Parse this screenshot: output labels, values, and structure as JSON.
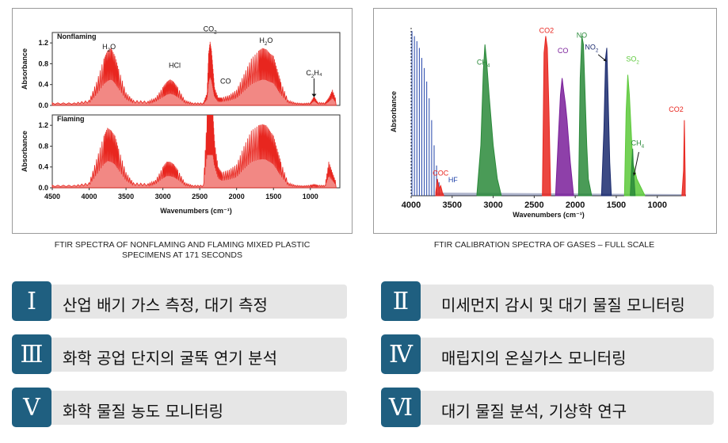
{
  "colors": {
    "badge": "#1f5f80",
    "bar_bg": "#e6e6e6",
    "red": "#e8261f",
    "green": "#2a8a3a",
    "purple": "#7a1f9a",
    "navy": "#1a2a6e",
    "lightgreen": "#5cc93a",
    "blue": "#2244aa"
  },
  "chart_data": [
    {
      "type": "line",
      "panels": [
        "Nonflaming",
        "Flaming"
      ],
      "ylabel": "Absorbance",
      "xlabel": "Wavenumbers (cm⁻¹)",
      "x_ticks": [
        "4500",
        "4000",
        "3500",
        "3000",
        "2500",
        "2000",
        "1500",
        "1000"
      ],
      "y_ticks": [
        "0.0",
        "0.4",
        "0.8",
        "1.2"
      ],
      "xlim": [
        4500,
        600
      ],
      "ylim": [
        0,
        1.4
      ],
      "annotations": [
        {
          "x": 3730,
          "y": 1.08,
          "base": "H",
          "sub": "2",
          "tail": "O"
        },
        {
          "x": 2840,
          "y": 0.72,
          "base": "HCl",
          "sub": "",
          "tail": ""
        },
        {
          "x": 2360,
          "y": 1.42,
          "base": "CO",
          "sub": "2",
          "tail": ""
        },
        {
          "x": 2150,
          "y": 0.42,
          "base": "CO",
          "sub": "",
          "tail": ""
        },
        {
          "x": 1600,
          "y": 1.2,
          "base": "H",
          "sub": "2",
          "tail": "O"
        },
        {
          "x": 950,
          "y": 0.58,
          "base": "C",
          "sub": "2",
          "tail": "H₄"
        }
      ],
      "series": [
        {
          "name": "Nonflaming",
          "x": [
            4500,
            4200,
            4000,
            3900,
            3800,
            3750,
            3700,
            3650,
            3600,
            3500,
            3400,
            3200,
            3100,
            3000,
            2950,
            2900,
            2850,
            2800,
            2700,
            2600,
            2450,
            2400,
            2380,
            2360,
            2340,
            2320,
            2300,
            2250,
            2200,
            2100,
            2000,
            1900,
            1800,
            1700,
            1650,
            1600,
            1550,
            1500,
            1450,
            1400,
            1300,
            1200,
            1100,
            1000,
            950,
            900,
            800,
            750,
            700,
            650
          ],
          "y": [
            0.05,
            0.05,
            0.1,
            0.45,
            0.9,
            1.05,
            1.1,
            0.95,
            0.7,
            0.25,
            0.1,
            0.08,
            0.15,
            0.35,
            0.45,
            0.5,
            0.45,
            0.35,
            0.1,
            0.05,
            0.05,
            0.25,
            1.0,
            1.22,
            1.05,
            0.7,
            0.35,
            0.15,
            0.15,
            0.2,
            0.3,
            0.6,
            0.9,
            1.05,
            1.1,
            1.08,
            1.0,
            0.95,
            0.7,
            0.45,
            0.1,
            0.05,
            0.04,
            0.05,
            0.18,
            0.06,
            0.05,
            0.15,
            0.3,
            0.1
          ]
        },
        {
          "name": "Flaming",
          "x": [
            4500,
            4200,
            4000,
            3900,
            3800,
            3750,
            3700,
            3650,
            3600,
            3500,
            3400,
            3200,
            3100,
            3000,
            2950,
            2900,
            2850,
            2800,
            2700,
            2600,
            2450,
            2400,
            2380,
            2360,
            2340,
            2320,
            2300,
            2250,
            2200,
            2100,
            2000,
            1900,
            1800,
            1700,
            1650,
            1600,
            1550,
            1500,
            1450,
            1400,
            1300,
            1200,
            1100,
            1000,
            950,
            900,
            800,
            750,
            700,
            650
          ],
          "y": [
            0.05,
            0.05,
            0.1,
            0.55,
            1.0,
            1.15,
            1.1,
            1.0,
            0.75,
            0.3,
            0.1,
            0.08,
            0.15,
            0.4,
            0.5,
            0.5,
            0.45,
            0.35,
            0.1,
            0.05,
            0.05,
            1.4,
            1.4,
            1.4,
            1.4,
            1.4,
            0.9,
            0.4,
            0.3,
            0.35,
            0.45,
            0.8,
            1.1,
            1.2,
            1.22,
            1.2,
            1.1,
            1.0,
            0.75,
            0.5,
            0.1,
            0.05,
            0.04,
            0.05,
            0.06,
            0.05,
            0.05,
            0.5,
            0.3,
            0.1
          ]
        }
      ]
    },
    {
      "type": "area",
      "ylabel": "Absorbance",
      "xlabel": "Wavenumbers (cm⁻¹)",
      "x_ticks": [
        "4000",
        "3500",
        "3000",
        "2500",
        "2000",
        "1500",
        "1000"
      ],
      "xlim": [
        4000,
        650
      ],
      "ylim": [
        0,
        1
      ],
      "labels": [
        {
          "x": 3640,
          "y": 0.12,
          "base": "COC",
          "sub": "",
          "tail": "",
          "color": "#e8261f"
        },
        {
          "x": 3490,
          "y": 0.08,
          "base": "HF",
          "sub": "",
          "tail": "",
          "color": "#2244aa"
        },
        {
          "x": 3120,
          "y": 0.78,
          "base": "CH",
          "sub": "4",
          "tail": "",
          "color": "#2a8a3a"
        },
        {
          "x": 2350,
          "y": 0.97,
          "base": "CO2",
          "sub": "",
          "tail": "",
          "color": "#e8261f"
        },
        {
          "x": 2150,
          "y": 0.85,
          "base": "CO",
          "sub": "",
          "tail": "",
          "color": "#7a1f9a"
        },
        {
          "x": 1920,
          "y": 0.94,
          "base": "NO",
          "sub": "",
          "tail": "",
          "color": "#2a8a3a"
        },
        {
          "x": 1800,
          "y": 0.87,
          "base": "NO",
          "sub": "2",
          "tail": "",
          "color": "#1a2a6e"
        },
        {
          "x": 1300,
          "y": 0.8,
          "base": "SO",
          "sub": "2",
          "tail": "",
          "color": "#5cc93a"
        },
        {
          "x": 1240,
          "y": 0.3,
          "base": "CH",
          "sub": "4",
          "tail": "",
          "color": "#2a8a3a"
        },
        {
          "x": 770,
          "y": 0.5,
          "base": "CO2",
          "sub": "",
          "tail": "",
          "color": "#e8261f"
        }
      ],
      "series": [
        {
          "name": "HF",
          "color": "#2244aa",
          "x": [
            3990,
            3960,
            3930,
            3900,
            3870,
            3840,
            3810,
            3780,
            3750,
            3720,
            3690,
            3660
          ],
          "y": [
            0.98,
            0.95,
            0.92,
            0.88,
            0.82,
            0.76,
            0.68,
            0.58,
            0.45,
            0.3,
            0.18,
            0.08
          ]
        },
        {
          "name": "COC",
          "color": "#e8261f",
          "x": [
            3700,
            3680,
            3660,
            3640,
            3620,
            3600
          ],
          "y": [
            0.02,
            0.1,
            0.04,
            0.06,
            0.02,
            0.0
          ]
        },
        {
          "name": "CH4",
          "color": "#2a8a3a",
          "x": [
            3200,
            3150,
            3120,
            3100,
            3080,
            3050,
            3000,
            2950,
            2900
          ],
          "y": [
            0.0,
            0.3,
            0.75,
            0.9,
            0.8,
            0.6,
            0.3,
            0.1,
            0.0
          ]
        },
        {
          "name": "CO2",
          "color": "#e8261f",
          "x": [
            2400,
            2380,
            2360,
            2340,
            2320,
            2300
          ],
          "y": [
            0.0,
            0.85,
            0.95,
            0.88,
            0.5,
            0.0
          ]
        },
        {
          "name": "CO",
          "color": "#7a1f9a",
          "x": [
            2240,
            2200,
            2180,
            2160,
            2140,
            2120,
            2100,
            2060,
            2020
          ],
          "y": [
            0.0,
            0.4,
            0.6,
            0.7,
            0.62,
            0.55,
            0.45,
            0.2,
            0.0
          ]
        },
        {
          "name": "NO",
          "color": "#2a8a3a",
          "x": [
            1960,
            1940,
            1920,
            1900,
            1880,
            1860,
            1840,
            1800
          ],
          "y": [
            0.0,
            0.7,
            0.95,
            0.9,
            0.6,
            0.3,
            0.1,
            0.0
          ]
        },
        {
          "name": "NO2",
          "color": "#1a2a6e",
          "x": [
            1680,
            1650,
            1630,
            1615,
            1600,
            1580,
            1560
          ],
          "y": [
            0.0,
            0.4,
            0.82,
            0.88,
            0.6,
            0.2,
            0.0
          ]
        },
        {
          "name": "SO2",
          "color": "#5cc93a",
          "x": [
            1400,
            1380,
            1360,
            1340,
            1320,
            1300,
            1250,
            1200,
            1150
          ],
          "y": [
            0.0,
            0.5,
            0.72,
            0.6,
            0.4,
            0.2,
            0.1,
            0.05,
            0.0
          ]
        },
        {
          "name": "CH4",
          "color": "#2a8a3a",
          "x": [
            1330,
            1310,
            1300,
            1290,
            1270
          ],
          "y": [
            0.0,
            0.2,
            0.28,
            0.15,
            0.0
          ]
        },
        {
          "name": "CO2",
          "color": "#e8261f",
          "x": [
            700,
            680,
            670,
            660
          ],
          "y": [
            0.0,
            0.15,
            0.45,
            0.1
          ]
        }
      ]
    }
  ],
  "captions": {
    "left_line1": "FTIR SPECTRA OF NONFLAMING AND FLAMING MIXED PLASTIC",
    "left_line2": "SPECIMENS AT 171 SECONDS",
    "right": "FTIR CALIBRATION SPECTRA OF GASES – FULL SCALE"
  },
  "applications": [
    {
      "numeral": "Ⅰ",
      "text": "산업 배기 가스 측정, 대기 측정"
    },
    {
      "numeral": "Ⅱ",
      "text": "미세먼지 감시 및 대기 물질 모니터링"
    },
    {
      "numeral": "Ⅲ",
      "text": "화학 공업 단지의 굴뚝 연기 분석"
    },
    {
      "numeral": "Ⅳ",
      "text": "매립지의 온실가스 모니터링"
    },
    {
      "numeral": "Ⅴ",
      "text": "화학 물질 농도 모니터링"
    },
    {
      "numeral": "Ⅵ",
      "text": "대기 물질 분석, 기상학 연구"
    }
  ]
}
